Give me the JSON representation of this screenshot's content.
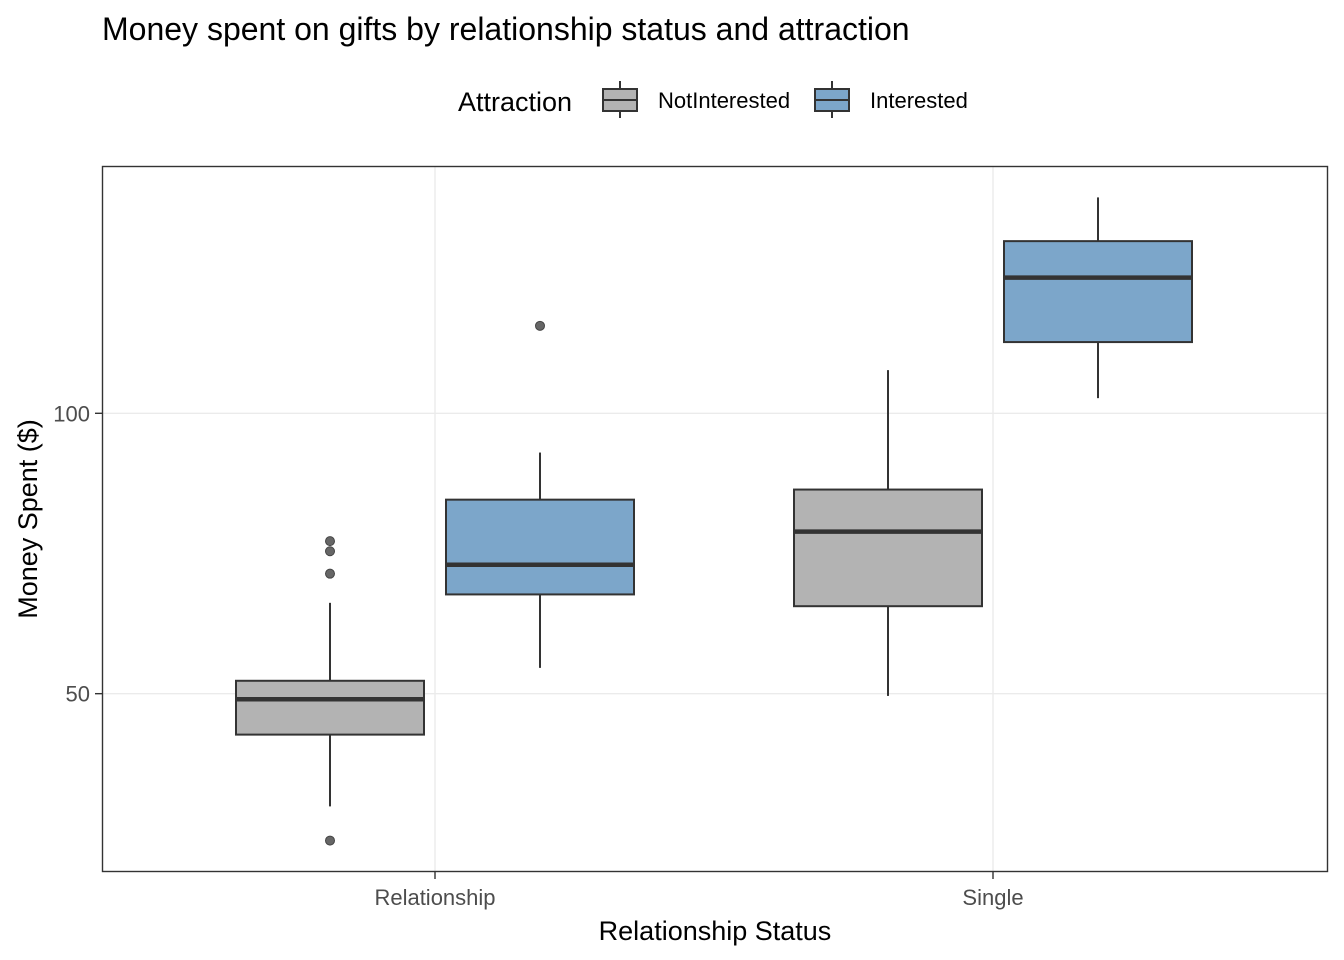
{
  "chart_data": {
    "type": "boxplot",
    "title": "Money spent on gifts by relationship status and attraction",
    "xlabel": "Relationship Status",
    "ylabel": "Money Spent ($)",
    "categories": [
      "Relationship",
      "Single"
    ],
    "ylim": [
      18.2,
      144.1
    ],
    "yticks": [
      50,
      100
    ],
    "grid": true,
    "legend": {
      "title": "Attraction",
      "position": "top",
      "entries": [
        {
          "name": "NotInterested",
          "color": "#b3b3b3"
        },
        {
          "name": "Interested",
          "color": "#7ca6ca"
        }
      ]
    },
    "series": [
      {
        "name": "NotInterested",
        "color": "#b3b3b3",
        "boxes": [
          {
            "category": "Relationship",
            "lower_whisker": 29.9,
            "q1": 42.7,
            "median": 49.0,
            "q3": 52.3,
            "upper_whisker": 66.2,
            "outliers": [
              77.2,
              75.4,
              71.4,
              23.8
            ]
          },
          {
            "category": "Single",
            "lower_whisker": 49.6,
            "q1": 65.6,
            "median": 78.9,
            "q3": 86.4,
            "upper_whisker": 107.7,
            "outliers": []
          }
        ]
      },
      {
        "name": "Interested",
        "color": "#7ca6ca",
        "boxes": [
          {
            "category": "Relationship",
            "lower_whisker": 54.6,
            "q1": 67.7,
            "median": 73.0,
            "q3": 84.6,
            "upper_whisker": 93.0,
            "outliers": [
              115.6
            ]
          },
          {
            "category": "Single",
            "lower_whisker": 102.7,
            "q1": 112.7,
            "median": 124.2,
            "q3": 130.7,
            "upper_whisker": 138.5,
            "outliers": []
          }
        ]
      }
    ]
  }
}
